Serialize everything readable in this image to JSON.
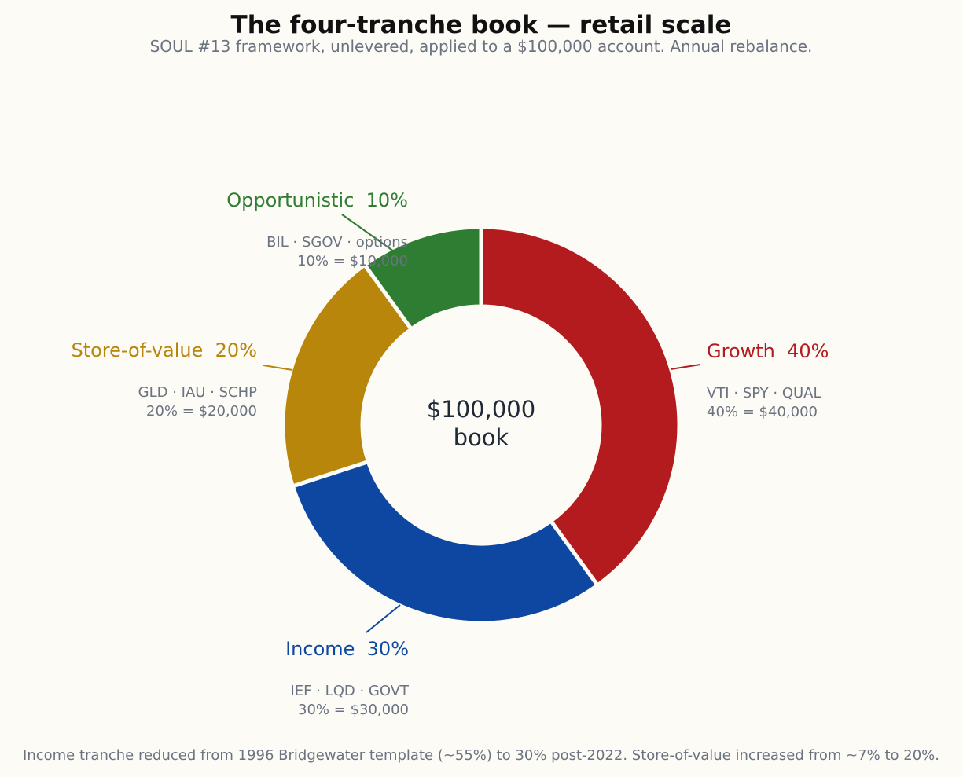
{
  "chart_data": {
    "type": "pie",
    "title": "The four-tranche book — retail scale",
    "subtitle": "SOUL #13 framework, unlevered, applied to a $100,000 account. Annual rebalance.",
    "center_label": [
      "$100,000",
      "book"
    ],
    "footnote": "Income tranche reduced from 1996 Bridgewater template (~55%) to 30% post-2022. Store-of-value increased from ~7% to 20%.",
    "slices": [
      {
        "name": "Growth",
        "percent_label": "40%",
        "value": 40,
        "color": "#b31b1e",
        "tickers": "VTI · SPY · QUAL",
        "amount_label": "40% = $40,000"
      },
      {
        "name": "Income",
        "percent_label": "30%",
        "value": 30,
        "color": "#0d47a1",
        "tickers": "IEF · LQD · GOVT",
        "amount_label": "30% = $30,000"
      },
      {
        "name": "Store-of-value",
        "percent_label": "20%",
        "value": 20,
        "color": "#b8860b",
        "tickers": "GLD · IAU · SCHP",
        "amount_label": "20% = $20,000"
      },
      {
        "name": "Opportunistic",
        "percent_label": "10%",
        "value": 10,
        "color": "#2e7d32",
        "tickers": "BIL · SGOV · options",
        "amount_label": "10% = $10,000"
      }
    ]
  }
}
